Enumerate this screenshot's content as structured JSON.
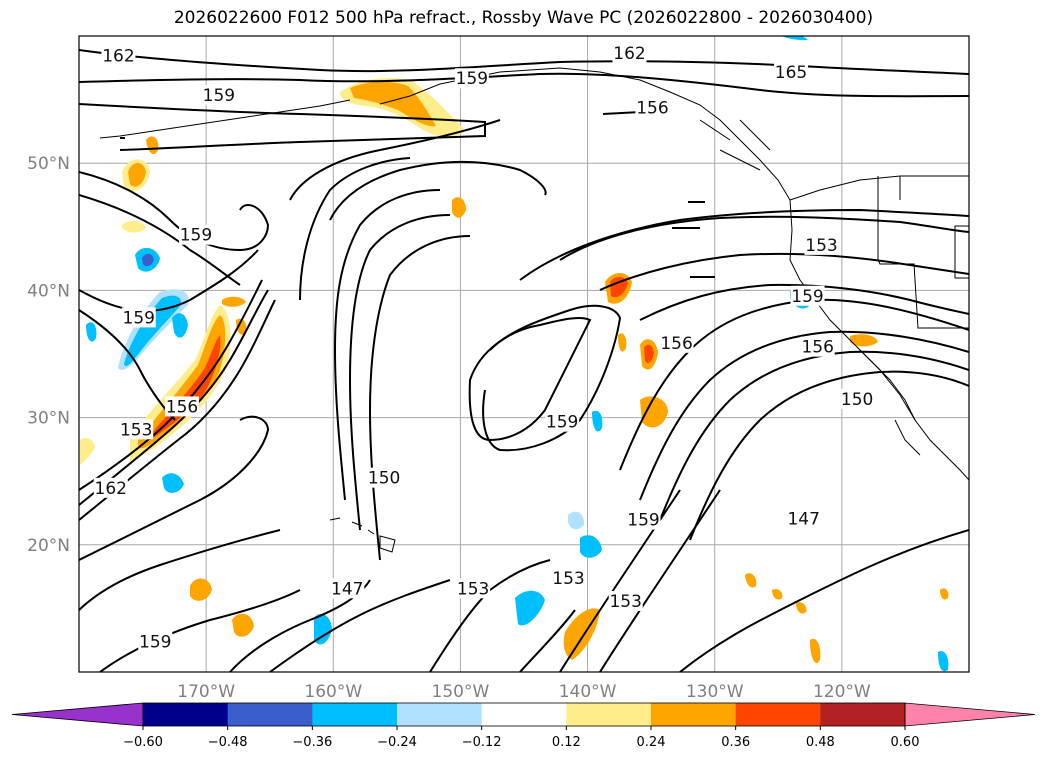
{
  "title": "2026022600 F012 500 hPa refract., Rossby Wave PC (2026022800 - 2026030400)",
  "map": {
    "lon_min": -180,
    "lon_max": -110,
    "lat_min": 10,
    "lat_max": 60,
    "lat_ticks": [
      {
        "v": 20,
        "label": "20°N"
      },
      {
        "v": 30,
        "label": "30°N"
      },
      {
        "v": 40,
        "label": "40°N"
      },
      {
        "v": 50,
        "label": "50°N"
      }
    ],
    "lon_ticks": [
      {
        "v": -170,
        "label": "170°W"
      },
      {
        "v": -160,
        "label": "160°W"
      },
      {
        "v": -150,
        "label": "150°W"
      },
      {
        "v": -140,
        "label": "140°W"
      },
      {
        "v": -130,
        "label": "130°W"
      },
      {
        "v": -120,
        "label": "120°W"
      }
    ],
    "grid": true
  },
  "colorbar": {
    "extend": "both",
    "tick_labels": [
      "−0.60",
      "−0.48",
      "−0.36",
      "−0.24",
      "−0.12",
      "0.12",
      "0.24",
      "0.36",
      "0.48",
      "0.60"
    ],
    "colors": {
      "under": "#9932cc",
      "bins": [
        "#00008b",
        "#3a5fcd",
        "#00bfff",
        "#b0e2ff",
        "#ffffff",
        "#ffec8b",
        "#ffa500",
        "#ff4500",
        "#b22222"
      ],
      "over": "#ff82ab"
    }
  },
  "contour_labels": [
    {
      "text": "162",
      "lon": -176.9,
      "lat": 58.4
    },
    {
      "text": "159",
      "lon": -149.1,
      "lat": 56.6
    },
    {
      "text": "159",
      "lon": -169.0,
      "lat": 55.3
    },
    {
      "text": "162",
      "lon": -136.7,
      "lat": 58.6
    },
    {
      "text": "165",
      "lon": -124.0,
      "lat": 57.1
    },
    {
      "text": "156",
      "lon": -134.9,
      "lat": 54.3
    },
    {
      "text": "159",
      "lon": -170.8,
      "lat": 44.3
    },
    {
      "text": "153",
      "lon": -121.6,
      "lat": 43.5
    },
    {
      "text": "159",
      "lon": -122.7,
      "lat": 39.5
    },
    {
      "text": "156",
      "lon": -121.9,
      "lat": 35.5
    },
    {
      "text": "156",
      "lon": -133.0,
      "lat": 35.8
    },
    {
      "text": "150",
      "lon": -118.8,
      "lat": 31.4
    },
    {
      "text": "159",
      "lon": -175.3,
      "lat": 37.8
    },
    {
      "text": "156",
      "lon": -171.9,
      "lat": 30.8
    },
    {
      "text": "153",
      "lon": -175.5,
      "lat": 29.0
    },
    {
      "text": "162",
      "lon": -177.5,
      "lat": 24.4
    },
    {
      "text": "150",
      "lon": -156.0,
      "lat": 25.2
    },
    {
      "text": "159",
      "lon": -142.0,
      "lat": 29.6
    },
    {
      "text": "159",
      "lon": -135.6,
      "lat": 21.9
    },
    {
      "text": "147",
      "lon": -158.9,
      "lat": 16.5
    },
    {
      "text": "153",
      "lon": -149.0,
      "lat": 16.5
    },
    {
      "text": "153",
      "lon": -141.5,
      "lat": 17.3
    },
    {
      "text": "153",
      "lon": -137.0,
      "lat": 15.5
    },
    {
      "text": "147",
      "lon": -123.0,
      "lat": 22.0
    },
    {
      "text": "159",
      "lon": -174.0,
      "lat": 12.3
    }
  ]
}
